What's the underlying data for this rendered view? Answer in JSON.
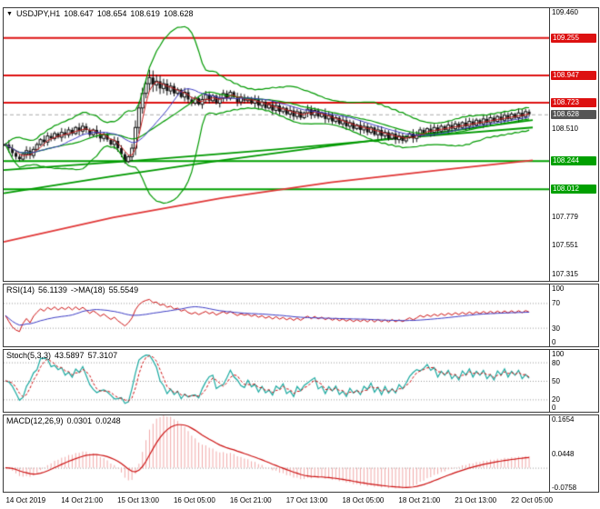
{
  "colors": {
    "level_red": "#dd1111",
    "level_green": "#00a000",
    "bb_green": "#009900",
    "trend_green": "#009900",
    "trend_red": "#e03636",
    "candle": "#111111",
    "fast_ma_red": "#cc2222",
    "fast_ma_blue": "#3b3bc4",
    "current_line": "#aaaaaa",
    "red_badge_bg": "#dd1111",
    "green_badge_bg": "#00a000",
    "current_badge_bg": "#555555",
    "rsi_line": "#cc1111",
    "rsi_ma": "#3b3bc4",
    "stoch_main": "#1aa9a0",
    "stoch_signal": "#cc1111",
    "macd_bar": "#f0a8a8",
    "macd_line": "#cc1111",
    "grid_dotted": "#999999"
  },
  "main_chart": {
    "marker_glyph": "▼",
    "title": "USDJPY,H1",
    "ohlc": {
      "open": "108.647",
      "high": "108.654",
      "low": "108.619",
      "close": "108.628"
    }
  },
  "rsi": {
    "label": "RSI(14)",
    "value": "56.1139",
    "ma_label": "->MA(18)",
    "ma_value": "55.5549"
  },
  "stoch": {
    "label": "Stoch(5,3,3)",
    "k_value": "43.5897",
    "d_value": "57.3107"
  },
  "macd": {
    "label": "MACD(12,26,9)",
    "value": "0.0301",
    "signal_value": "0.0248"
  },
  "chart_data": [
    {
      "type": "candlestick",
      "symbol": "USDJPY",
      "timeframe": "H1",
      "title": "USDJPY,H1 108.647 108.654 108.619 108.628",
      "ylim": [
        107.26,
        109.5
      ],
      "x_labels": [
        "14 Oct 2019",
        "14 Oct 21:00",
        "15 Oct 13:00",
        "16 Oct 05:00",
        "16 Oct 21:00",
        "17 Oct 13:00",
        "18 Oct 05:00",
        "18 Oct 21:00",
        "21 Oct 13:00",
        "22 Oct 05:00"
      ],
      "x_label_indices": [
        5,
        21,
        37,
        53,
        69,
        85,
        101,
        117,
        133,
        149
      ],
      "closes": [
        108.38,
        108.35,
        108.31,
        108.28,
        108.26,
        108.3,
        108.33,
        108.29,
        108.34,
        108.38,
        108.42,
        108.4,
        108.45,
        108.43,
        108.47,
        108.44,
        108.48,
        108.46,
        108.5,
        108.47,
        108.52,
        108.49,
        108.53,
        108.5,
        108.46,
        108.5,
        108.47,
        108.43,
        108.46,
        108.42,
        108.38,
        108.41,
        108.35,
        108.3,
        108.24,
        108.28,
        108.35,
        108.52,
        108.68,
        108.8,
        108.88,
        108.93,
        108.87,
        108.9,
        108.84,
        108.88,
        108.82,
        108.86,
        108.8,
        108.83,
        108.77,
        108.81,
        108.75,
        108.72,
        108.76,
        108.71,
        108.75,
        108.79,
        108.74,
        108.78,
        108.72,
        108.76,
        108.8,
        108.76,
        108.81,
        108.77,
        108.73,
        108.77,
        108.74,
        108.76,
        108.72,
        108.75,
        108.7,
        108.73,
        108.68,
        108.71,
        108.66,
        108.7,
        108.65,
        108.68,
        108.63,
        108.66,
        108.61,
        108.65,
        108.6,
        108.64,
        108.67,
        108.62,
        108.66,
        108.61,
        108.64,
        108.59,
        108.62,
        108.57,
        108.6,
        108.55,
        108.58,
        108.53,
        108.56,
        108.51,
        108.54,
        108.5,
        108.53,
        108.48,
        108.52,
        108.46,
        108.5,
        108.45,
        108.48,
        108.43,
        108.47,
        108.42,
        108.45,
        108.41,
        108.44,
        108.47,
        108.43,
        108.46,
        108.5,
        108.47,
        108.51,
        108.48,
        108.52,
        108.49,
        108.53,
        108.5,
        108.54,
        108.51,
        108.55,
        108.52,
        108.56,
        108.53,
        108.57,
        108.54,
        108.58,
        108.55,
        108.59,
        108.56,
        108.6,
        108.57,
        108.61,
        108.58,
        108.62,
        108.59,
        108.63,
        108.6,
        108.64,
        108.61,
        108.65,
        108.628
      ],
      "levels": {
        "resistance": [
          109.255,
          108.947,
          108.723
        ],
        "support": [
          108.244,
          108.012
        ]
      },
      "current_price": 108.628,
      "y_axis": {
        "ticks": [
          109.46,
          108.51,
          107.779,
          107.551,
          107.315
        ],
        "badges": [
          {
            "value": 109.255,
            "type": "red"
          },
          {
            "value": 108.947,
            "type": "red"
          },
          {
            "value": 108.723,
            "type": "red"
          },
          {
            "value": 108.628,
            "type": "current"
          },
          {
            "value": 108.244,
            "type": "green"
          },
          {
            "value": 108.012,
            "type": "green"
          }
        ]
      },
      "overlays": {
        "bollinger": {
          "period": 20,
          "deviation": 2.8
        },
        "trend_lines": [
          {
            "color": "green",
            "points": [
              [
                0,
                107.98
              ],
              [
                0.2,
                108.12
              ],
              [
                0.4,
                108.25
              ],
              [
                0.6,
                108.37
              ],
              [
                0.8,
                108.48
              ],
              [
                0.97,
                108.58
              ]
            ]
          },
          {
            "color": "green",
            "points": [
              [
                0,
                108.17
              ],
              [
                0.25,
                108.25
              ],
              [
                0.5,
                108.34
              ],
              [
                0.75,
                108.44
              ],
              [
                0.97,
                108.52
              ]
            ]
          },
          {
            "color": "red",
            "points": [
              [
                0,
                107.58
              ],
              [
                0.2,
                107.78
              ],
              [
                0.4,
                107.94
              ],
              [
                0.6,
                108.07
              ],
              [
                0.8,
                108.17
              ],
              [
                0.97,
                108.25
              ]
            ]
          }
        ]
      }
    },
    {
      "type": "line",
      "indicator": "RSI",
      "params": [
        14
      ],
      "current_value": 56.1139,
      "ma_period": 18,
      "ma_value": 55.5549,
      "ylim": [
        0,
        100
      ],
      "ticks": [
        100,
        70,
        30,
        0
      ],
      "level_lines": [
        70,
        30
      ]
    },
    {
      "type": "line",
      "indicator": "Stochastic",
      "params": [
        5,
        3,
        3
      ],
      "k_value": 43.5897,
      "d_value": 57.3107,
      "ylim": [
        0,
        100
      ],
      "ticks": [
        100,
        80,
        50,
        20,
        0
      ],
      "level_lines": [
        80,
        50,
        20
      ]
    },
    {
      "type": "macd",
      "indicator": "MACD",
      "params": [
        12,
        26,
        9
      ],
      "macd_value": 0.0301,
      "signal_value": 0.0248,
      "ylim": [
        -0.0758,
        0.1654
      ],
      "ticks": [
        0.1654,
        0.0448,
        -0.0758
      ]
    }
  ]
}
